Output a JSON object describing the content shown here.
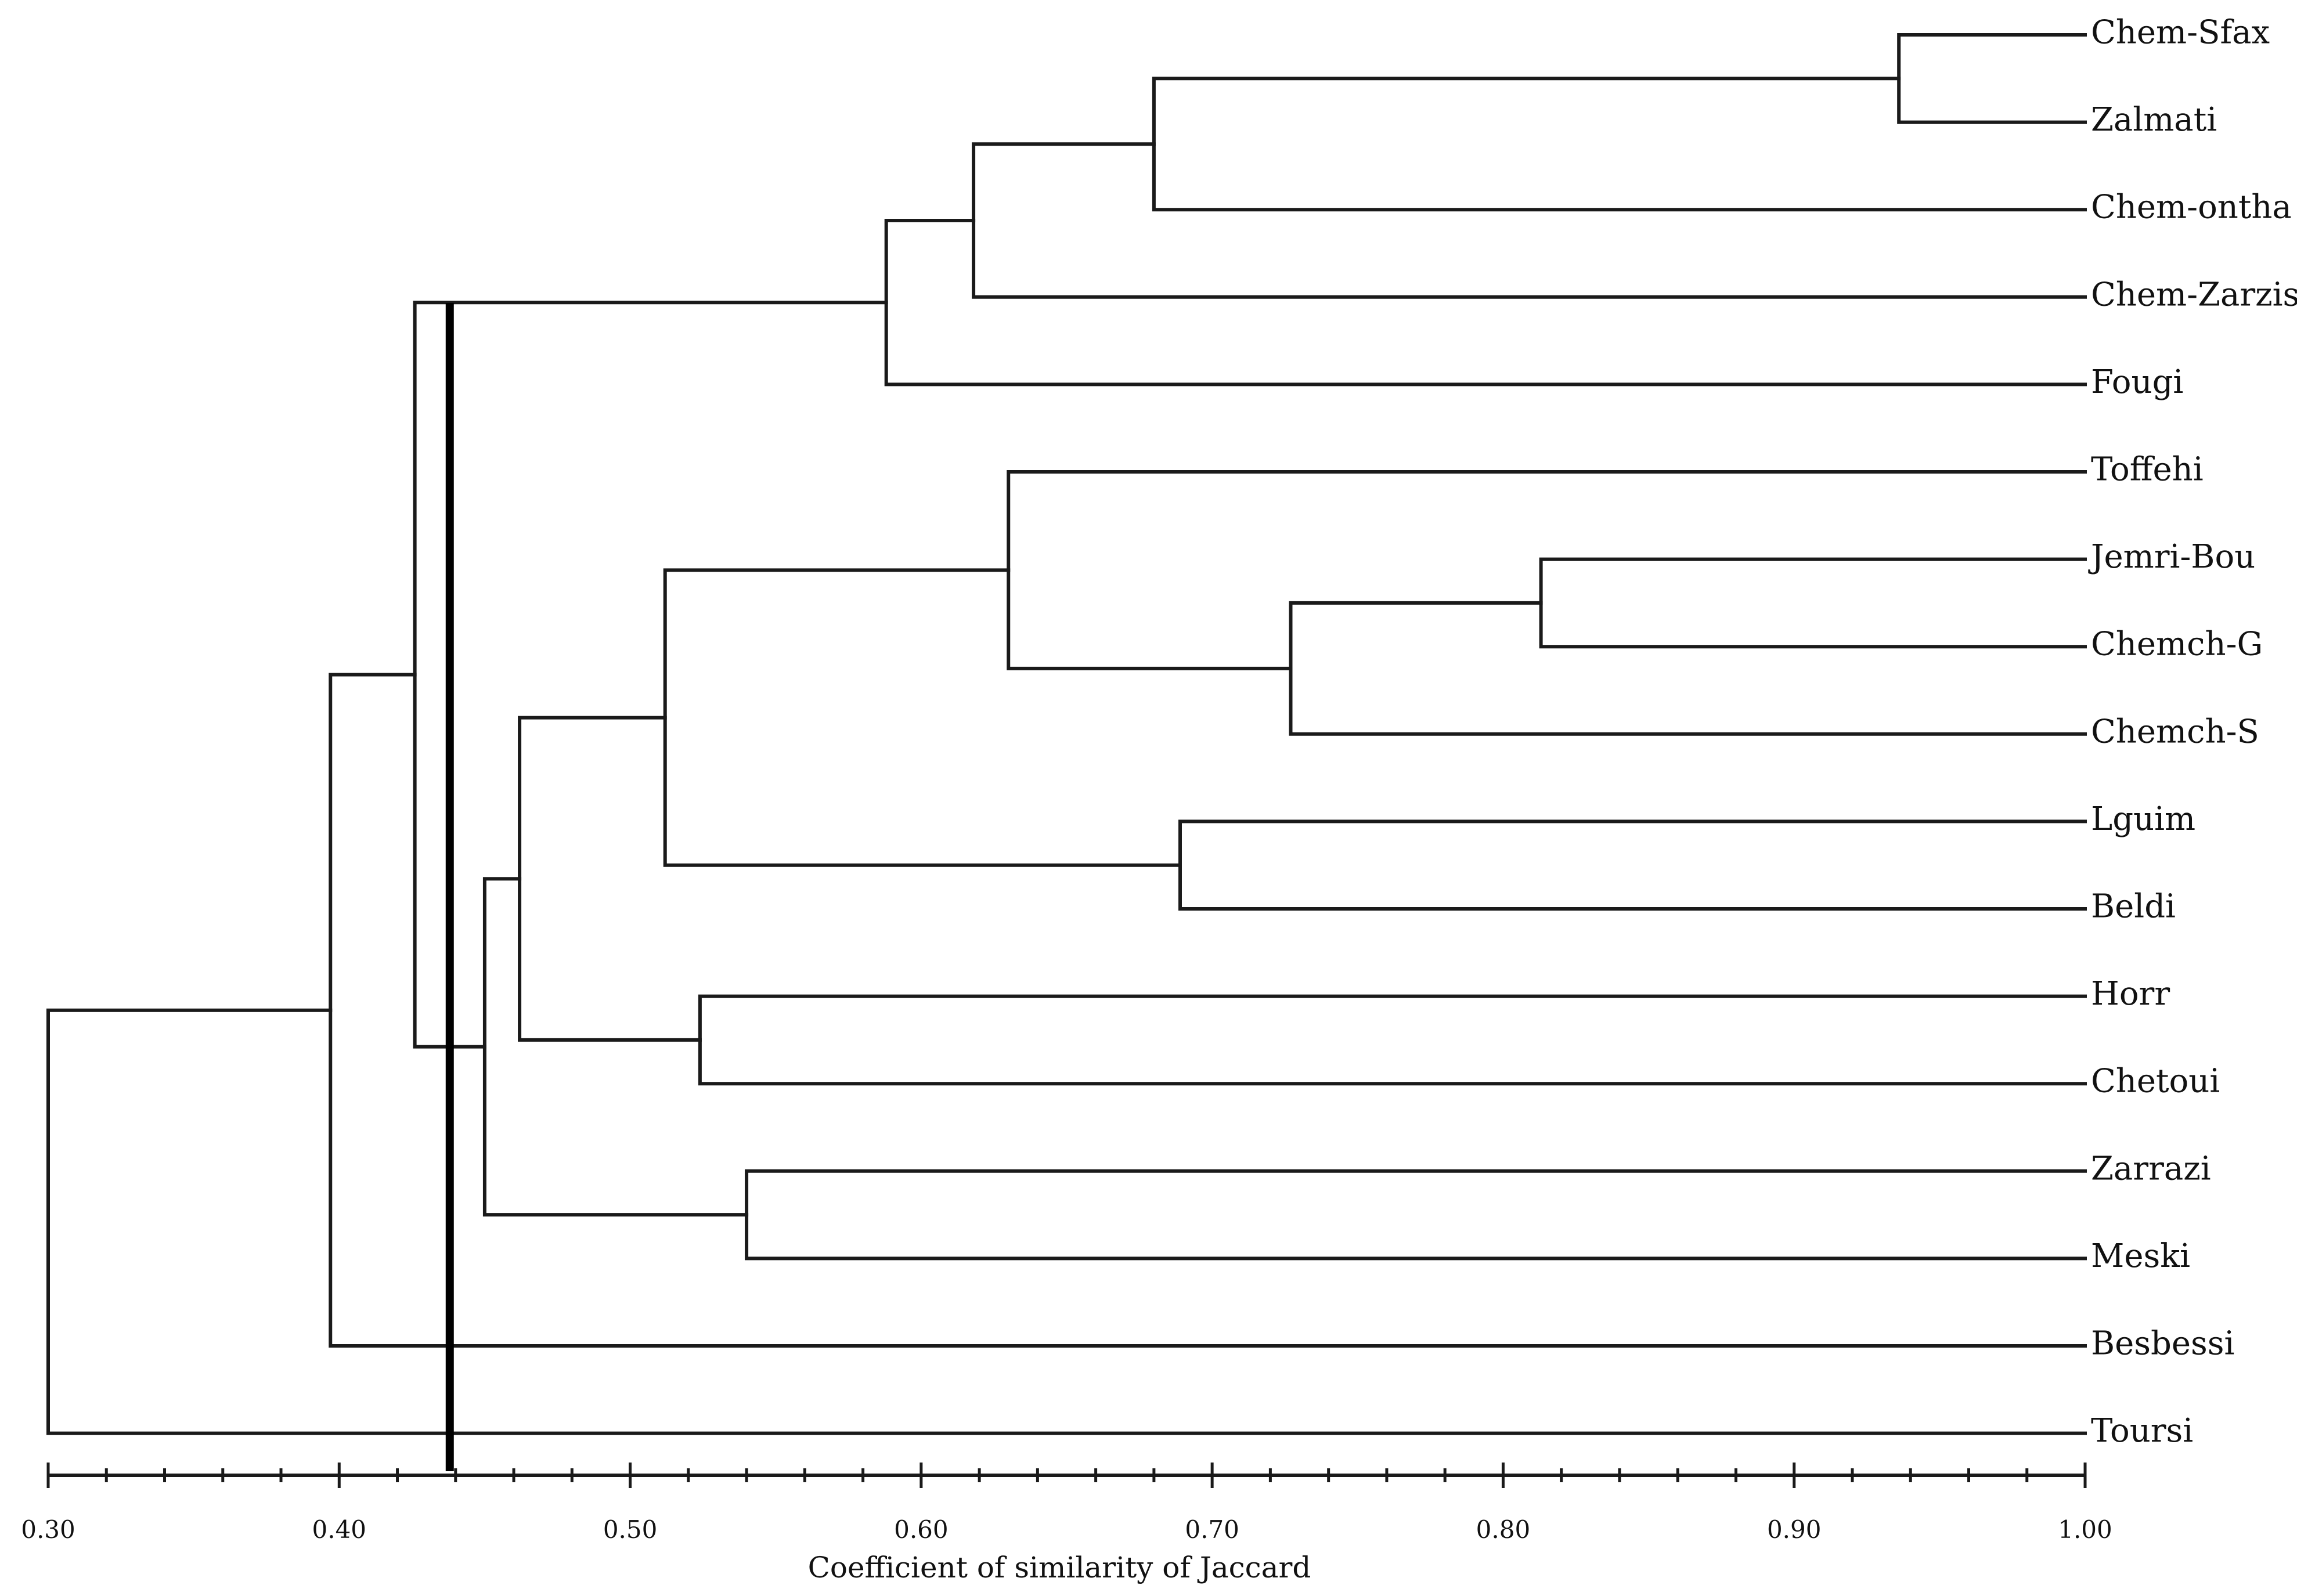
{
  "axis": {
    "title": "Coefficient of similarity of Jaccard",
    "min": 0.3,
    "max": 1.0,
    "major_ticks": [
      "0.30",
      "0.40",
      "0.50",
      "0.60",
      "0.70",
      "0.80",
      "0.90",
      "1.00"
    ],
    "minor_step": 0.02
  },
  "leaves": [
    "Chem-Sfax",
    "Zalmati",
    "Chem-ontha",
    "Chem-Zarzis",
    "Fougi",
    "Toffehi",
    "Jemri-Bou",
    "Chemch-G",
    "Chemch-S",
    "Lguim",
    "Beldi",
    "Horr",
    "Chetoui",
    "Zarrazi",
    "Meski",
    "Besbessi",
    "Toursi"
  ],
  "cut_line_similarity": 0.438,
  "merges": [
    {
      "id": "m1",
      "children": [
        "Chem-Sfax",
        "Zalmati"
      ],
      "similarity": 0.936
    },
    {
      "id": "m2",
      "children": [
        "m1",
        "Chem-ontha"
      ],
      "similarity": 0.68
    },
    {
      "id": "m3",
      "children": [
        "m2",
        "Chem-Zarzis"
      ],
      "similarity": 0.618
    },
    {
      "id": "m4",
      "children": [
        "m3",
        "Fougi"
      ],
      "similarity": 0.588
    },
    {
      "id": "m5",
      "children": [
        "Jemri-Bou",
        "Chemch-G"
      ],
      "similarity": 0.813
    },
    {
      "id": "m6",
      "children": [
        "m5",
        "Chemch-S"
      ],
      "similarity": 0.727
    },
    {
      "id": "m7",
      "children": [
        "Toffehi",
        "m6"
      ],
      "similarity": 0.63
    },
    {
      "id": "m8",
      "children": [
        "Lguim",
        "Beldi"
      ],
      "similarity": 0.689
    },
    {
      "id": "m9",
      "children": [
        "m7",
        "m8"
      ],
      "similarity": 0.512
    },
    {
      "id": "m10",
      "children": [
        "Horr",
        "Chetoui"
      ],
      "similarity": 0.524
    },
    {
      "id": "m11",
      "children": [
        "m9",
        "m10"
      ],
      "similarity": 0.462
    },
    {
      "id": "m12",
      "children": [
        "Zarrazi",
        "Meski"
      ],
      "similarity": 0.54
    },
    {
      "id": "m13",
      "children": [
        "m11",
        "m12"
      ],
      "similarity": 0.45
    },
    {
      "id": "m14",
      "children": [
        "m4",
        "m13"
      ],
      "similarity": 0.426
    },
    {
      "id": "m15",
      "children": [
        "m14",
        "Besbessi"
      ],
      "similarity": 0.397
    },
    {
      "id": "m16",
      "children": [
        "m15",
        "Toursi"
      ],
      "similarity": 0.3
    }
  ]
}
